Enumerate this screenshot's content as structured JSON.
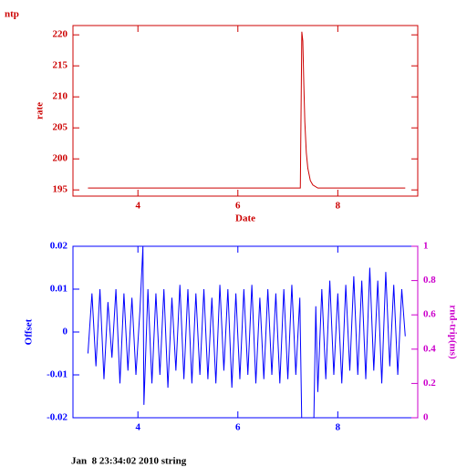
{
  "chart_data": [
    {
      "type": "line",
      "title": "ntp",
      "y_label": "rate",
      "x_label": "Date",
      "color": "#cc0000",
      "axis_color": "#cc0000",
      "x": [
        3.0,
        7.25,
        7.28,
        7.3,
        7.32,
        7.34,
        7.37,
        7.4,
        7.45,
        7.5,
        7.6,
        9.35
      ],
      "values": [
        195.3,
        195.3,
        220.5,
        219,
        212,
        206,
        201,
        198.5,
        196.5,
        195.8,
        195.3,
        195.3
      ],
      "xlim": [
        2.7,
        9.6
      ],
      "ylim": [
        194,
        221.5
      ],
      "xticks": [
        4,
        6,
        8
      ],
      "yticks": [
        195,
        200,
        205,
        210,
        215,
        220
      ],
      "grid": false
    },
    {
      "type": "line",
      "y_label": "Offset",
      "y2_label": "rnd-trip(ms)",
      "color": "#0000ff",
      "axis_color": "#0000ff",
      "y2_color": "#cc00cc",
      "x": [
        3.0,
        3.08,
        3.16,
        3.24,
        3.32,
        3.4,
        3.48,
        3.56,
        3.64,
        3.72,
        3.8,
        3.88,
        3.96,
        4.04,
        4.1,
        4.12,
        4.2,
        4.28,
        4.36,
        4.44,
        4.52,
        4.6,
        4.68,
        4.76,
        4.84,
        4.92,
        5.0,
        5.08,
        5.16,
        5.24,
        5.32,
        5.4,
        5.48,
        5.56,
        5.64,
        5.72,
        5.8,
        5.88,
        5.96,
        6.04,
        6.12,
        6.2,
        6.28,
        6.36,
        6.44,
        6.52,
        6.6,
        6.68,
        6.76,
        6.84,
        6.92,
        7.0,
        7.08,
        7.16,
        7.24,
        7.28,
        7.4,
        7.52,
        7.56,
        7.6,
        7.68,
        7.76,
        7.84,
        7.92,
        8.0,
        8.08,
        8.16,
        8.24,
        8.32,
        8.4,
        8.48,
        8.56,
        8.64,
        8.72,
        8.8,
        8.88,
        8.96,
        9.04,
        9.12,
        9.2,
        9.28,
        9.35
      ],
      "values": [
        -0.005,
        0.009,
        -0.008,
        0.01,
        -0.011,
        0.007,
        -0.006,
        0.01,
        -0.012,
        0.009,
        -0.009,
        0.008,
        -0.01,
        0.005,
        0.02,
        -0.017,
        0.01,
        -0.012,
        0.009,
        -0.01,
        0.01,
        -0.013,
        0.008,
        -0.009,
        0.011,
        -0.011,
        0.01,
        -0.012,
        0.009,
        -0.01,
        0.01,
        -0.011,
        0.008,
        -0.012,
        0.011,
        -0.009,
        0.01,
        -0.013,
        0.009,
        -0.011,
        0.01,
        -0.01,
        0.011,
        -0.012,
        0.008,
        -0.011,
        0.01,
        -0.01,
        0.009,
        -0.012,
        0.01,
        -0.011,
        0.011,
        -0.01,
        0.008,
        -0.022,
        null,
        -0.021,
        0.006,
        -0.014,
        0.01,
        -0.011,
        0.012,
        -0.01,
        0.009,
        -0.012,
        0.011,
        -0.009,
        0.013,
        -0.01,
        0.012,
        -0.011,
        0.015,
        -0.009,
        0.012,
        -0.012,
        0.014,
        -0.008,
        0.011,
        -0.01,
        0.01,
        -0.001
      ],
      "xlim": [
        2.7,
        9.6
      ],
      "ylim": [
        -0.02,
        0.02
      ],
      "y2lim": [
        0,
        1
      ],
      "xticks": [
        4,
        6,
        8
      ],
      "yticks": [
        -0.02,
        -0.01,
        0,
        0.01,
        0.02
      ],
      "y2ticks": [
        0,
        0.2,
        0.4,
        0.6,
        0.8,
        1
      ],
      "grid": false
    }
  ],
  "footer": "Jan  8 23:34:02 2010 string"
}
